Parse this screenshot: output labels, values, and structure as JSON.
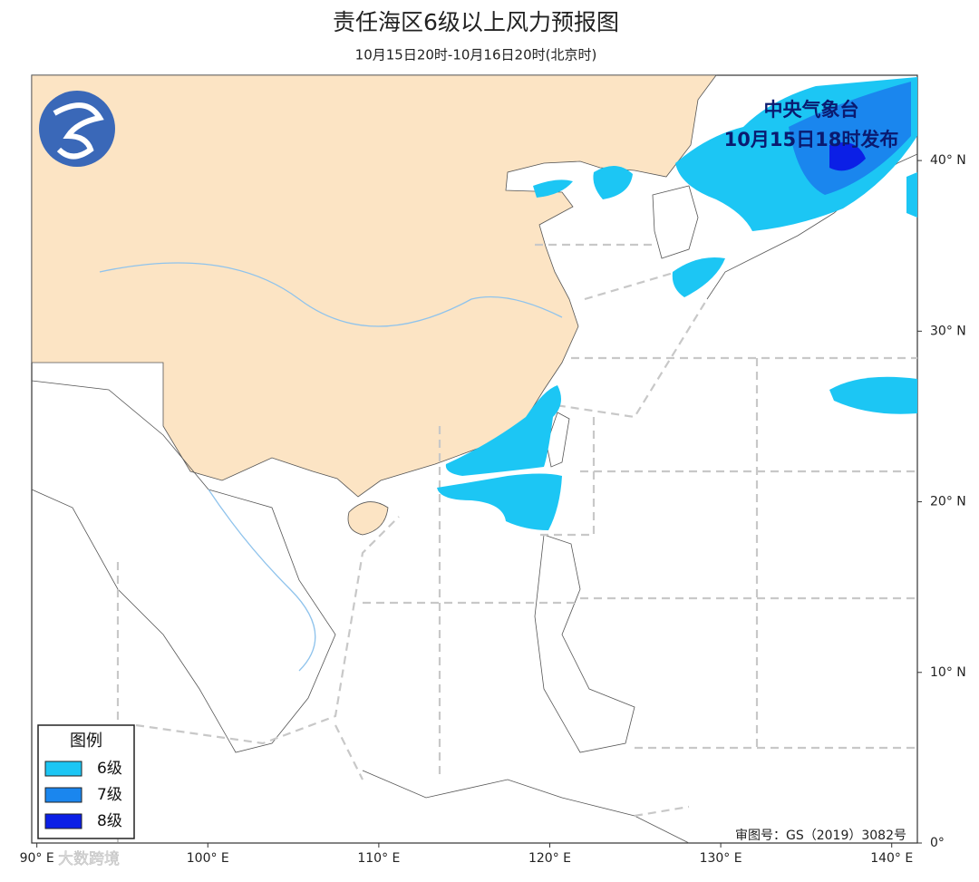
{
  "header": {
    "title": "责任海区6级以上风力预报图",
    "subtitle": "10月15日20时-10月16日20时(北京时)"
  },
  "issuer": {
    "agency": "中央气象台",
    "issued": "10月15日18时发布"
  },
  "legend": {
    "title": "图例",
    "items": [
      {
        "label": "6级",
        "color": "#1cc6f4"
      },
      {
        "label": "7级",
        "color": "#1a86ee"
      },
      {
        "label": "8级",
        "color": "#0b1fe6"
      }
    ]
  },
  "map": {
    "xlim": [
      89.7,
      141.5
    ],
    "ylim": [
      0,
      45
    ],
    "lon_ticks": [
      {
        "value": 90,
        "label": "90° E"
      },
      {
        "value": 100,
        "label": "100° E"
      },
      {
        "value": 110,
        "label": "110° E"
      },
      {
        "value": 120,
        "label": "120° E"
      },
      {
        "value": 130,
        "label": "130° E"
      },
      {
        "value": 140,
        "label": "140° E"
      }
    ],
    "lat_ticks": [
      {
        "value": 0,
        "label": "0°"
      },
      {
        "value": 10,
        "label": "10° N"
      },
      {
        "value": 20,
        "label": "20° N"
      },
      {
        "value": 30,
        "label": "30° N"
      },
      {
        "value": 40,
        "label": "40° N"
      }
    ]
  },
  "approval": "审图号：GS（2019）3082号",
  "watermark": "大数跨境"
}
